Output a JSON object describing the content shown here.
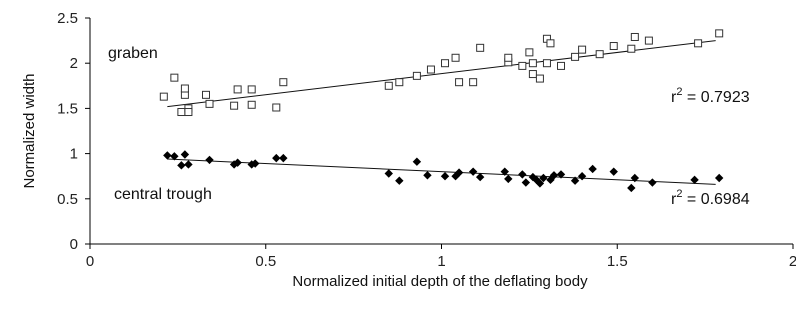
{
  "chart_data": {
    "type": "scatter",
    "title": "",
    "xlabel": "Normalized initial depth of the deflating body",
    "ylabel": "Normalized width",
    "xlim": [
      0,
      2
    ],
    "ylim": [
      0,
      2.5
    ],
    "x_ticks": [
      "0",
      "0.5",
      "1",
      "1.5",
      "2"
    ],
    "y_ticks": [
      "0",
      "0.5",
      "1",
      "1.5",
      "2",
      "2.5"
    ],
    "grid": false,
    "series": [
      {
        "name": "graben",
        "marker": "open-square",
        "color": "#333333",
        "trendline": {
          "x": [
            0.22,
            1.78
          ],
          "y": [
            1.52,
            2.25
          ]
        },
        "r2_label": "r",
        "r2_sup": "2",
        "r2_text": " = 0.7923",
        "points": [
          [
            0.21,
            1.63
          ],
          [
            0.24,
            1.84
          ],
          [
            0.26,
            1.46
          ],
          [
            0.27,
            1.65
          ],
          [
            0.27,
            1.72
          ],
          [
            0.28,
            1.5
          ],
          [
            0.28,
            1.46
          ],
          [
            0.33,
            1.65
          ],
          [
            0.34,
            1.55
          ],
          [
            0.41,
            1.53
          ],
          [
            0.42,
            1.71
          ],
          [
            0.46,
            1.54
          ],
          [
            0.46,
            1.71
          ],
          [
            0.53,
            1.51
          ],
          [
            0.55,
            1.79
          ],
          [
            0.85,
            1.75
          ],
          [
            0.88,
            1.79
          ],
          [
            0.93,
            1.86
          ],
          [
            0.97,
            1.93
          ],
          [
            1.01,
            2.0
          ],
          [
            1.04,
            2.06
          ],
          [
            1.05,
            1.79
          ],
          [
            1.09,
            1.79
          ],
          [
            1.11,
            2.17
          ],
          [
            1.19,
            2.01
          ],
          [
            1.19,
            2.06
          ],
          [
            1.23,
            1.97
          ],
          [
            1.25,
            2.12
          ],
          [
            1.26,
            1.88
          ],
          [
            1.26,
            2.0
          ],
          [
            1.28,
            1.83
          ],
          [
            1.3,
            2.0
          ],
          [
            1.3,
            2.27
          ],
          [
            1.31,
            2.22
          ],
          [
            1.34,
            1.97
          ],
          [
            1.38,
            2.07
          ],
          [
            1.4,
            2.15
          ],
          [
            1.45,
            2.1
          ],
          [
            1.49,
            2.19
          ],
          [
            1.54,
            2.16
          ],
          [
            1.55,
            2.29
          ],
          [
            1.59,
            2.25
          ],
          [
            1.73,
            2.22
          ],
          [
            1.79,
            2.33
          ]
        ]
      },
      {
        "name": "central trough",
        "marker": "filled-diamond",
        "color": "#000000",
        "trendline": {
          "x": [
            0.22,
            1.78
          ],
          "y": [
            0.94,
            0.66
          ]
        },
        "r2_label": "r",
        "r2_sup": "2",
        "r2_text": " = 0.6984",
        "points": [
          [
            0.22,
            0.98
          ],
          [
            0.24,
            0.97
          ],
          [
            0.26,
            0.87
          ],
          [
            0.27,
            0.99
          ],
          [
            0.28,
            0.88
          ],
          [
            0.34,
            0.93
          ],
          [
            0.41,
            0.88
          ],
          [
            0.42,
            0.9
          ],
          [
            0.46,
            0.88
          ],
          [
            0.47,
            0.89
          ],
          [
            0.53,
            0.95
          ],
          [
            0.55,
            0.95
          ],
          [
            0.85,
            0.78
          ],
          [
            0.88,
            0.7
          ],
          [
            0.93,
            0.91
          ],
          [
            0.96,
            0.76
          ],
          [
            1.01,
            0.75
          ],
          [
            1.04,
            0.75
          ],
          [
            1.05,
            0.79
          ],
          [
            1.09,
            0.8
          ],
          [
            1.11,
            0.74
          ],
          [
            1.18,
            0.8
          ],
          [
            1.19,
            0.72
          ],
          [
            1.23,
            0.77
          ],
          [
            1.24,
            0.68
          ],
          [
            1.26,
            0.74
          ],
          [
            1.27,
            0.71
          ],
          [
            1.28,
            0.67
          ],
          [
            1.29,
            0.73
          ],
          [
            1.31,
            0.71
          ],
          [
            1.32,
            0.76
          ],
          [
            1.34,
            0.77
          ],
          [
            1.38,
            0.7
          ],
          [
            1.4,
            0.75
          ],
          [
            1.43,
            0.83
          ],
          [
            1.49,
            0.8
          ],
          [
            1.54,
            0.62
          ],
          [
            1.55,
            0.73
          ],
          [
            1.6,
            0.68
          ],
          [
            1.72,
            0.71
          ],
          [
            1.79,
            0.73
          ]
        ]
      }
    ],
    "annotations": [
      "graben",
      "central trough"
    ]
  }
}
